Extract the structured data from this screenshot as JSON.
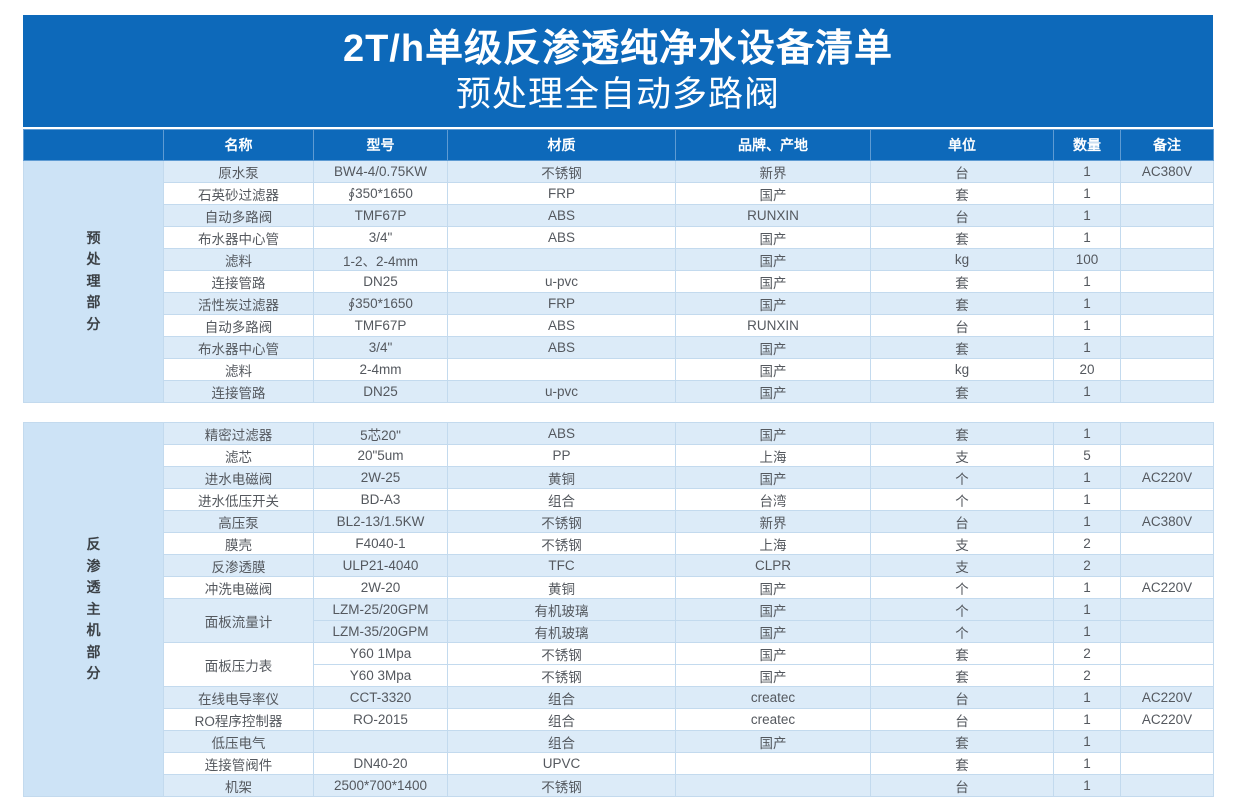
{
  "banner": {
    "title": "2T/h单级反渗透纯净水设备清单",
    "subtitle": "预处理全自动多路阀"
  },
  "colors": {
    "banner_blue": "#0D69BA",
    "header_blue": "#0D69BA",
    "row_shaded": "#DCEBF8",
    "row_plain": "#FFFFFF",
    "group_cell": "#CDE3F6",
    "grid_border": "#C3DAEE",
    "text_body": "#54585E",
    "text_header": "#FFFFFF"
  },
  "table": {
    "columns": [
      "名称",
      "型号",
      "材质",
      "品牌、产地",
      "单位",
      "数量",
      "备注"
    ],
    "column_keys": [
      "name",
      "model",
      "material",
      "brand",
      "unit",
      "qty",
      "note"
    ],
    "sections": [
      {
        "group_label": "预处理部分",
        "rows": [
          {
            "shaded": true,
            "cells": [
              "原水泵",
              "BW4-4/0.75KW",
              "不锈钢",
              "新界",
              "台",
              "1",
              "AC380V"
            ]
          },
          {
            "shaded": false,
            "cells": [
              "石英砂过滤器",
              "∮350*1650",
              "FRP",
              "国产",
              "套",
              "1",
              ""
            ]
          },
          {
            "shaded": true,
            "cells": [
              "自动多路阀",
              "TMF67P",
              "ABS",
              "RUNXIN",
              "台",
              "1",
              ""
            ]
          },
          {
            "shaded": false,
            "cells": [
              "布水器中心管",
              "3/4\"",
              "ABS",
              "国产",
              "套",
              "1",
              ""
            ]
          },
          {
            "shaded": true,
            "cells": [
              "滤料",
              "1-2、2-4mm",
              "",
              "国产",
              "kg",
              "100",
              ""
            ]
          },
          {
            "shaded": false,
            "cells": [
              "连接管路",
              "DN25",
              "u-pvc",
              "国产",
              "套",
              "1",
              ""
            ]
          },
          {
            "shaded": true,
            "cells": [
              "活性炭过滤器",
              "∮350*1650",
              "FRP",
              "国产",
              "套",
              "1",
              ""
            ]
          },
          {
            "shaded": false,
            "cells": [
              "自动多路阀",
              "TMF67P",
              "ABS",
              "RUNXIN",
              "台",
              "1",
              ""
            ]
          },
          {
            "shaded": true,
            "cells": [
              "布水器中心管",
              "3/4\"",
              "ABS",
              "国产",
              "套",
              "1",
              ""
            ]
          },
          {
            "shaded": false,
            "cells": [
              "滤料",
              "2-4mm",
              "",
              "国产",
              "kg",
              "20",
              ""
            ]
          },
          {
            "shaded": true,
            "cells": [
              "连接管路",
              "DN25",
              "u-pvc",
              "国产",
              "套",
              "1",
              ""
            ]
          }
        ]
      },
      {
        "group_label": "反渗透主机部分",
        "rows": [
          {
            "shaded": true,
            "cells": [
              "精密过滤器",
              "5芯20\"",
              "ABS",
              "国产",
              "套",
              "1",
              ""
            ]
          },
          {
            "shaded": false,
            "cells": [
              "滤芯",
              "20\"5um",
              "PP",
              "上海",
              "支",
              "5",
              ""
            ]
          },
          {
            "shaded": true,
            "cells": [
              "进水电磁阀",
              "2W-25",
              "黄铜",
              "国产",
              "个",
              "1",
              "AC220V"
            ]
          },
          {
            "shaded": false,
            "cells": [
              "进水低压开关",
              "BD-A3",
              "组合",
              "台湾",
              "个",
              "1",
              ""
            ]
          },
          {
            "shaded": true,
            "cells": [
              "高压泵",
              "BL2-13/1.5KW",
              "不锈钢",
              "新界",
              "台",
              "1",
              "AC380V"
            ]
          },
          {
            "shaded": false,
            "cells": [
              "膜壳",
              "F4040-1",
              "不锈钢",
              "上海",
              "支",
              "2",
              ""
            ]
          },
          {
            "shaded": true,
            "cells": [
              "反渗透膜",
              "ULP21-4040",
              "TFC",
              "CLPR",
              "支",
              "2",
              ""
            ]
          },
          {
            "shaded": false,
            "cells": [
              "冲洗电磁阀",
              "2W-20",
              "黄铜",
              "国产",
              "个",
              "1",
              "AC220V"
            ]
          },
          {
            "shaded": true,
            "name_rowspan": 2,
            "cells": [
              "面板流量计",
              "LZM-25/20GPM",
              "有机玻璃",
              "国产",
              "个",
              "1",
              ""
            ]
          },
          {
            "shaded": true,
            "merged_name": true,
            "cells": [
              "",
              "LZM-35/20GPM",
              "有机玻璃",
              "国产",
              "个",
              "1",
              ""
            ]
          },
          {
            "shaded": false,
            "name_rowspan": 2,
            "cells": [
              "面板压力表",
              "Y60 1Mpa",
              "不锈钢",
              "国产",
              "套",
              "2",
              ""
            ]
          },
          {
            "shaded": false,
            "merged_name": true,
            "cells": [
              "",
              "Y60 3Mpa",
              "不锈钢",
              "国产",
              "套",
              "2",
              ""
            ]
          },
          {
            "shaded": true,
            "cells": [
              "在线电导率仪",
              "CCT-3320",
              "组合",
              "createc",
              "台",
              "1",
              "AC220V"
            ]
          },
          {
            "shaded": false,
            "cells": [
              "RO程序控制器",
              "RO-2015",
              "组合",
              "createc",
              "台",
              "1",
              "AC220V"
            ]
          },
          {
            "shaded": true,
            "cells": [
              "低压电气",
              "",
              "组合",
              "国产",
              "套",
              "1",
              ""
            ]
          },
          {
            "shaded": false,
            "cells": [
              "连接管阀件",
              "DN40-20",
              "UPVC",
              "",
              "套",
              "1",
              ""
            ]
          },
          {
            "shaded": true,
            "cells": [
              "机架",
              "2500*700*1400",
              "不锈钢",
              "",
              "台",
              "1",
              ""
            ]
          }
        ]
      }
    ]
  }
}
